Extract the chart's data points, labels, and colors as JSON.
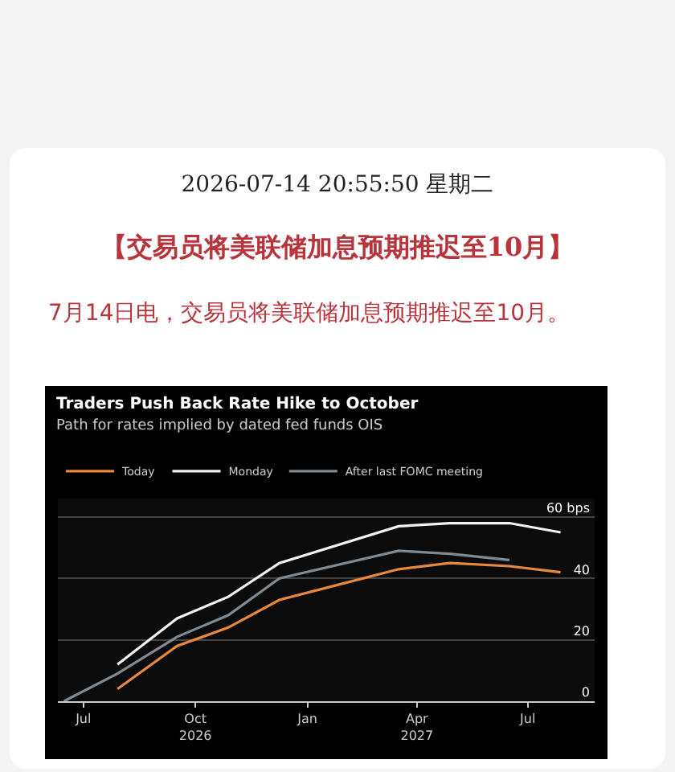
{
  "chart_data": {
    "type": "line",
    "title": "Traders Push Back Rate Hike to October",
    "subtitle": "Path for rates implied by dated fed funds OIS",
    "annotations": [
      "2026-07-14 20:55:50 星期二",
      "【交易员将美联储加息预期推迟至10月】",
      "7月14日电，交易员将美联储加息预期推迟至10月。"
    ],
    "series": [
      {
        "name": "Today",
        "color": "#e8883a",
        "x": [
          "2026-07-29",
          "2026-09-16",
          "2026-10-28",
          "2026-12-09",
          "2027-01-27",
          "2027-03-17",
          "2027-04-28",
          "2027-06-16",
          "2027-07-28"
        ],
        "values": [
          4,
          18,
          24,
          33,
          38,
          43,
          45,
          44,
          42
        ]
      },
      {
        "name": "Monday",
        "color": "#f2f2f2",
        "x": [
          "2026-07-29",
          "2026-09-16",
          "2026-10-28",
          "2026-12-09",
          "2027-03-17",
          "2027-04-28",
          "2027-06-16",
          "2027-07-28"
        ],
        "values": [
          12,
          27,
          34,
          45,
          57,
          58,
          58,
          55
        ]
      },
      {
        "name": "After last FOMC meeting",
        "color": "#7f8a93",
        "x": [
          "2026-06-15",
          "2026-07-29",
          "2026-09-16",
          "2026-10-28",
          "2026-12-09",
          "2027-03-17",
          "2027-04-28",
          "2027-06-16"
        ],
        "values": [
          0,
          9,
          21,
          28,
          40,
          49,
          48,
          46
        ]
      }
    ],
    "xlim": [
      "2026-06-10",
      "2027-08-25"
    ],
    "xticks": [
      {
        "value": "2026-07-01",
        "label": "Jul"
      },
      {
        "value": "2026-10-01",
        "label": "Oct\n2026"
      },
      {
        "value": "2027-01-01",
        "label": "Jan"
      },
      {
        "value": "2027-04-01",
        "label": "Apr\n2027"
      },
      {
        "value": "2027-07-01",
        "label": "Jul"
      }
    ],
    "ylim": [
      0,
      66
    ],
    "yticks": [
      0,
      20,
      40,
      {
        "value": 60,
        "label": "60 bps"
      }
    ],
    "grid": "y",
    "legend": "top left",
    "marker": "none",
    "line_style": "solid"
  }
}
